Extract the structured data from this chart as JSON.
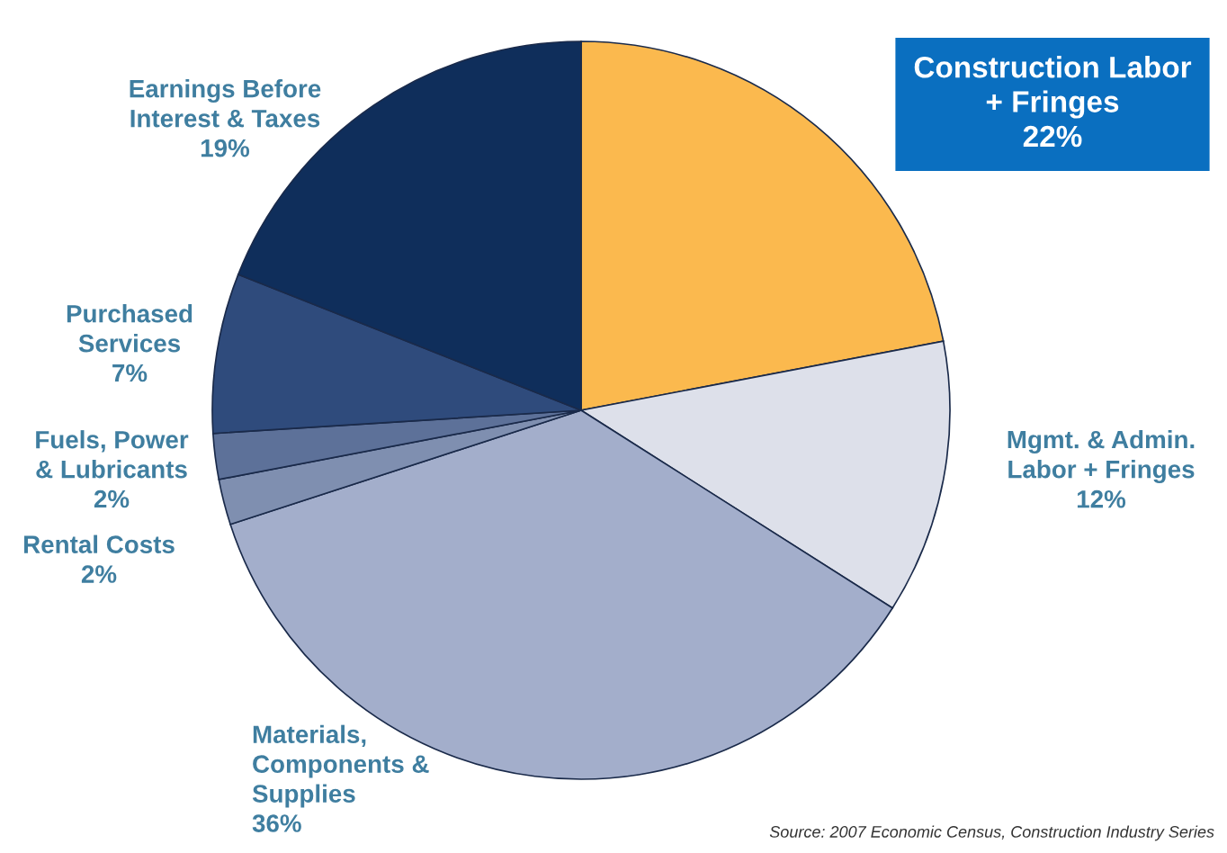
{
  "chart_data": {
    "type": "pie",
    "categories": [
      "Construction Labor\n+ Fringes",
      "Mgmt. & Admin.\nLabor + Fringes",
      "Materials,\nComponents &\nSupplies",
      "Rental Costs",
      "Fuels, Power\n& Lubricants",
      "Purchased\nServices",
      "Earnings Before\nInterest & Taxes"
    ],
    "values": [
      22,
      12,
      36,
      2,
      2,
      7,
      19
    ],
    "value_labels": [
      "22%",
      "12%",
      "36%",
      "2%",
      "2%",
      "7%",
      "19%"
    ],
    "colors": [
      "#fbb94e",
      "#dde0ea",
      "#a3aecb",
      "#7f8fb0",
      "#5d7199",
      "#2f4b7c",
      "#0f2e5b"
    ],
    "annotations": [
      "Source: 2007 Economic Census, Construction Industry Series"
    ]
  }
}
